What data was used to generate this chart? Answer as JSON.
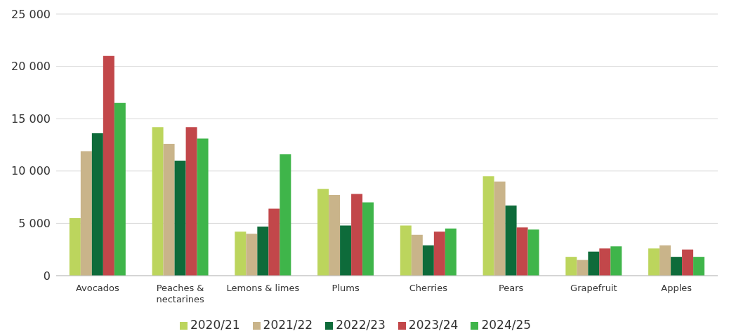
{
  "chart_data": {
    "type": "bar",
    "categories": [
      "Avocados",
      "Peaches & nectarines",
      "Lemons & limes",
      "Plums",
      "Cherries",
      "Pears",
      "Grapefruit",
      "Apples"
    ],
    "series": [
      {
        "name": "2020/21",
        "color": "#bcd55d",
        "values": [
          5500,
          14200,
          4200,
          8300,
          4800,
          9500,
          1800,
          2600
        ]
      },
      {
        "name": "2021/22",
        "color": "#c9b48a",
        "values": [
          11900,
          12600,
          4000,
          7700,
          3900,
          9000,
          1500,
          2900
        ]
      },
      {
        "name": "2022/23",
        "color": "#0e6b3a",
        "values": [
          13600,
          11000,
          4700,
          4800,
          2900,
          6700,
          2300,
          1800
        ]
      },
      {
        "name": "2023/24",
        "color": "#c2474a",
        "values": [
          21000,
          14200,
          6400,
          7800,
          4200,
          4600,
          2600,
          2500
        ]
      },
      {
        "name": "2024/25",
        "color": "#3fb54a",
        "values": [
          16500,
          13100,
          11600,
          7000,
          4500,
          4400,
          2800,
          1800
        ]
      }
    ],
    "ylim": [
      0,
      25000
    ],
    "yticks": [
      0,
      {
        "value": 5000,
        "label": "5 000"
      },
      {
        "value": 10000,
        "label": "10 000"
      },
      {
        "value": 15000,
        "label": "15 000"
      },
      {
        "value": 20000,
        "label": "20 000"
      },
      {
        "value": 25000,
        "label": "25 000"
      }
    ],
    "grid": "y",
    "legend": "bottom"
  }
}
